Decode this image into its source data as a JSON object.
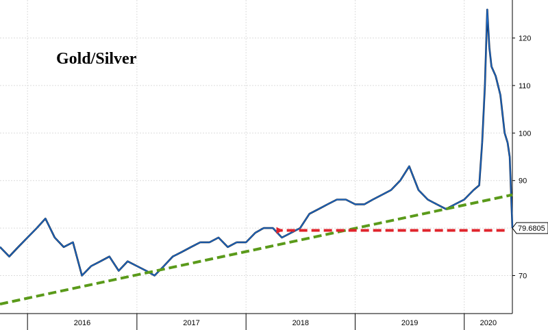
{
  "chart_data": {
    "type": "line",
    "title": "Gold/Silver",
    "xlabel": "",
    "ylabel": "",
    "x_ticks": [
      "2016",
      "2017",
      "2018",
      "2019",
      "2020"
    ],
    "y_ticks": [
      70,
      80,
      90,
      100,
      110,
      120
    ],
    "ylim": [
      62,
      128
    ],
    "xlim": [
      "2015-10-01",
      "2020-06-10"
    ],
    "last_value_label": "79.6805",
    "grid": true,
    "series": [
      {
        "x": [
          "2015-10-01",
          "2015-11-01",
          "2015-12-01",
          "2016-01-01",
          "2016-02-01",
          "2016-03-01",
          "2016-04-01",
          "2016-05-01",
          "2016-06-01",
          "2016-07-01",
          "2016-08-01",
          "2016-09-01",
          "2016-10-01",
          "2016-11-01",
          "2016-12-01",
          "2017-01-01",
          "2017-02-01",
          "2017-03-01",
          "2017-04-01",
          "2017-05-01",
          "2017-06-01",
          "2017-07-01",
          "2017-08-01",
          "2017-09-01",
          "2017-10-01",
          "2017-11-01",
          "2017-12-01",
          "2018-01-01",
          "2018-02-01",
          "2018-03-01",
          "2018-04-01",
          "2018-05-01",
          "2018-06-01",
          "2018-07-01",
          "2018-08-01",
          "2018-09-01",
          "2018-10-01",
          "2018-11-01",
          "2018-12-01",
          "2019-01-01",
          "2019-02-01",
          "2019-03-01",
          "2019-04-01",
          "2019-05-01",
          "2019-06-01",
          "2019-07-01",
          "2019-08-01",
          "2019-09-01",
          "2019-10-01",
          "2019-11-01",
          "2019-12-01",
          "2020-01-01",
          "2020-02-01",
          "2020-02-20",
          "2020-03-01",
          "2020-03-10",
          "2020-03-18",
          "2020-03-25",
          "2020-04-01",
          "2020-04-15",
          "2020-05-01",
          "2020-05-15",
          "2020-05-25",
          "2020-06-01",
          "2020-06-10"
        ],
        "values": [
          76,
          74,
          76,
          78,
          80,
          82,
          78,
          76,
          77,
          70,
          72,
          73,
          74,
          71,
          73,
          72,
          71,
          70,
          72,
          74,
          75,
          76,
          77,
          77,
          78,
          76,
          77,
          77,
          79,
          80,
          80,
          78,
          79,
          80,
          83,
          84,
          85,
          86,
          86,
          85,
          85,
          86,
          87,
          88,
          90,
          93,
          88,
          86,
          85,
          84,
          85,
          86,
          88,
          89,
          98,
          110,
          126,
          118,
          114,
          112,
          108,
          100,
          98,
          95,
          80
        ]
      }
    ],
    "trendline": {
      "x": [
        "2015-10-01",
        "2020-06-10"
      ],
      "values": [
        64,
        87
      ],
      "color": "#5a9a1a",
      "style": "dashed"
    },
    "reference_arrow": {
      "x_start": "2020-05-15",
      "x_end": "2018-04-10",
      "value": 79.5,
      "color": "#e0242c",
      "style": "dashed"
    },
    "line_color": "#1f6fd0",
    "grid_color": "#dcdcdc"
  }
}
